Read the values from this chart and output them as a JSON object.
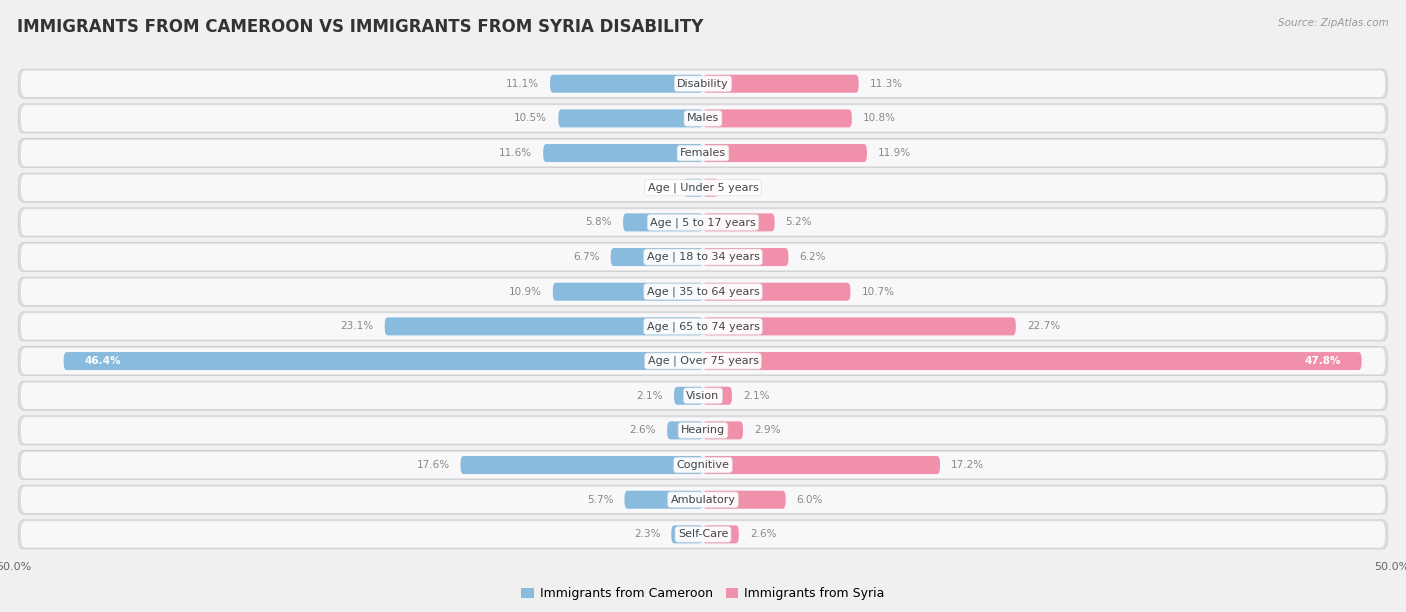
{
  "title": "IMMIGRANTS FROM CAMEROON VS IMMIGRANTS FROM SYRIA DISABILITY",
  "source": "Source: ZipAtlas.com",
  "categories": [
    "Disability",
    "Males",
    "Females",
    "Age | Under 5 years",
    "Age | 5 to 17 years",
    "Age | 18 to 34 years",
    "Age | 35 to 64 years",
    "Age | 65 to 74 years",
    "Age | Over 75 years",
    "Vision",
    "Hearing",
    "Cognitive",
    "Ambulatory",
    "Self-Care"
  ],
  "cameroon_values": [
    11.1,
    10.5,
    11.6,
    1.4,
    5.8,
    6.7,
    10.9,
    23.1,
    46.4,
    2.1,
    2.6,
    17.6,
    5.7,
    2.3
  ],
  "syria_values": [
    11.3,
    10.8,
    11.9,
    1.1,
    5.2,
    6.2,
    10.7,
    22.7,
    47.8,
    2.1,
    2.9,
    17.2,
    6.0,
    2.6
  ],
  "cameroon_color": "#88bbdd",
  "syria_color": "#f090aa",
  "axis_max": 50.0,
  "background_color": "#f0f0f0",
  "row_bg_color": "#e8e8ec",
  "row_inner_color": "#ffffff",
  "legend_label_cameroon": "Immigrants from Cameroon",
  "legend_label_syria": "Immigrants from Syria",
  "title_fontsize": 12,
  "label_fontsize": 8,
  "value_fontsize": 7.5,
  "source_fontsize": 7.5
}
